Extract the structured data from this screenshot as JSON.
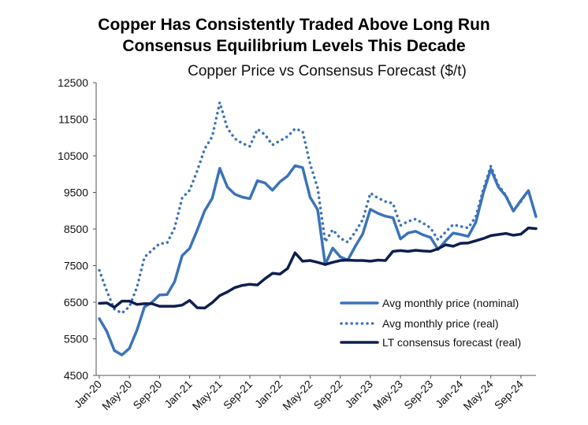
{
  "title_line1": "Copper Has Consistently Traded Above Long Run",
  "title_line2": "Consensus Equilibrium Levels This Decade",
  "chart_data": {
    "type": "line",
    "title": "Copper Has Consistently Traded Above Long Run Consensus Equilibrium Levels This Decade",
    "subtitle": "Copper Price vs Consensus Forecast ($/t)",
    "xlabel": "",
    "ylabel": "",
    "ylim": [
      4500,
      12500
    ],
    "yticks": [
      4500,
      5500,
      6500,
      7500,
      8500,
      9500,
      10500,
      11500,
      12500
    ],
    "xtick_labels": [
      "Jan-20",
      "May-20",
      "Sep-20",
      "Jan-21",
      "May-21",
      "Sep-21",
      "Jan-22",
      "May-22",
      "Sep-22",
      "Jan-23",
      "May-23",
      "Sep-23",
      "Jan-24",
      "May-24",
      "Sep-24"
    ],
    "x": [
      "Jan-20",
      "Feb-20",
      "Mar-20",
      "Apr-20",
      "May-20",
      "Jun-20",
      "Jul-20",
      "Aug-20",
      "Sep-20",
      "Oct-20",
      "Nov-20",
      "Dec-20",
      "Jan-21",
      "Feb-21",
      "Mar-21",
      "Apr-21",
      "May-21",
      "Jun-21",
      "Jul-21",
      "Aug-21",
      "Sep-21",
      "Oct-21",
      "Nov-21",
      "Dec-21",
      "Jan-22",
      "Feb-22",
      "Mar-22",
      "Apr-22",
      "May-22",
      "Jun-22",
      "Jul-22",
      "Aug-22",
      "Sep-22",
      "Oct-22",
      "Nov-22",
      "Dec-22",
      "Jan-23",
      "Feb-23",
      "Mar-23",
      "Apr-23",
      "May-23",
      "Jun-23",
      "Jul-23",
      "Aug-23",
      "Sep-23",
      "Oct-23",
      "Nov-23",
      "Dec-23",
      "Jan-24",
      "Feb-24",
      "Mar-24",
      "Apr-24",
      "May-24",
      "Jun-24",
      "Jul-24",
      "Aug-24",
      "Sep-24",
      "Oct-24",
      "Nov-24"
    ],
    "grid": false,
    "legend_position": "bottom-right",
    "series": [
      {
        "name": "Avg monthly price (nominal)",
        "color": "#3b73b9",
        "style": "solid",
        "values": [
          6050,
          5700,
          5180,
          5060,
          5240,
          5740,
          6370,
          6500,
          6700,
          6710,
          7060,
          7770,
          7970,
          8470,
          9000,
          9340,
          10160,
          9650,
          9450,
          9370,
          9330,
          9820,
          9760,
          9560,
          9790,
          9950,
          10230,
          10180,
          9370,
          9030,
          7530,
          7980,
          7740,
          7650,
          8030,
          8370,
          9040,
          8930,
          8850,
          8810,
          8230,
          8390,
          8440,
          8340,
          8270,
          7940,
          8180,
          8390,
          8350,
          8300,
          8680,
          9480,
          10140,
          9650,
          9400,
          8990,
          9280,
          9550,
          8840
        ],
        "label": "nominal"
      },
      {
        "name": "Avg monthly price (real)",
        "color": "#3b73b9",
        "style": "dotted",
        "values": [
          7370,
          6800,
          6310,
          6200,
          6380,
          6910,
          7730,
          7920,
          8100,
          8120,
          8530,
          9350,
          9560,
          10090,
          10690,
          11030,
          11960,
          11260,
          10970,
          10840,
          10760,
          11230,
          11080,
          10800,
          10910,
          11030,
          11240,
          11170,
          10280,
          9620,
          8150,
          8480,
          8250,
          8140,
          8420,
          8760,
          9480,
          9350,
          9250,
          9200,
          8600,
          8710,
          8770,
          8660,
          8530,
          8200,
          8420,
          8620,
          8570,
          8530,
          8840,
          9580,
          10220,
          9700,
          9420,
          9000,
          9250,
          9560,
          8840
        ]
      },
      {
        "name": "LT consensus forecast (real)",
        "color": "#0e1f4d",
        "style": "solid",
        "values": [
          6470,
          6480,
          6360,
          6530,
          6530,
          6440,
          6460,
          6460,
          6390,
          6390,
          6390,
          6420,
          6550,
          6350,
          6340,
          6490,
          6680,
          6780,
          6900,
          6960,
          6990,
          6970,
          7140,
          7290,
          7270,
          7420,
          7850,
          7620,
          7640,
          7590,
          7530,
          7590,
          7640,
          7650,
          7640,
          7640,
          7620,
          7650,
          7640,
          7890,
          7910,
          7890,
          7920,
          7900,
          7890,
          7960,
          8070,
          8030,
          8110,
          8120,
          8180,
          8240,
          8320,
          8350,
          8380,
          8330,
          8360,
          8530,
          8510
        ]
      }
    ]
  }
}
